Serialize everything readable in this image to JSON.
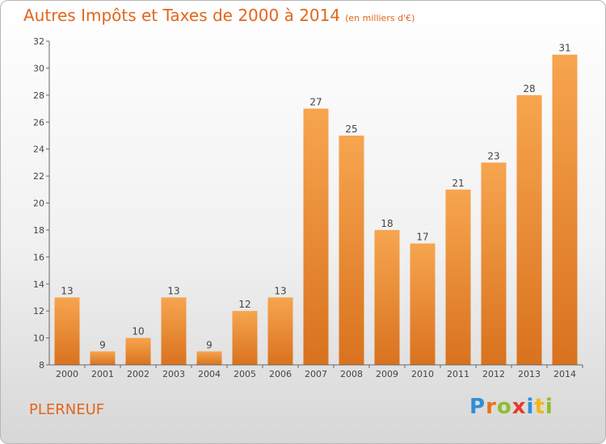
{
  "header": {
    "title": "Autres Impôts et Taxes de 2000 à 2014",
    "unit": "(en milliers d'€)"
  },
  "town": "PLERNEUF",
  "logo": {
    "text": "Proxiti",
    "letters": [
      "P",
      "r",
      "o",
      "x",
      "i",
      "t",
      "i"
    ]
  },
  "colors": {
    "bar_top": "#f7a54f",
    "bar_bottom": "#d9721e",
    "title": "#e2661c",
    "axis": "#666666"
  },
  "chart_data": {
    "type": "bar",
    "title": "Autres Impôts et Taxes de 2000 à 2014",
    "subtitle": "(en milliers d'€)",
    "categories": [
      "2000",
      "2001",
      "2002",
      "2003",
      "2004",
      "2005",
      "2006",
      "2007",
      "2008",
      "2009",
      "2010",
      "2011",
      "2012",
      "2013",
      "2014"
    ],
    "values": [
      13,
      9,
      10,
      13,
      9,
      12,
      13,
      27,
      25,
      18,
      17,
      21,
      23,
      28,
      31
    ],
    "ylim": [
      8,
      32
    ],
    "yticks": [
      8,
      10,
      12,
      14,
      16,
      18,
      20,
      22,
      24,
      26,
      28,
      30,
      32
    ],
    "grid": false,
    "data_labels": true
  }
}
